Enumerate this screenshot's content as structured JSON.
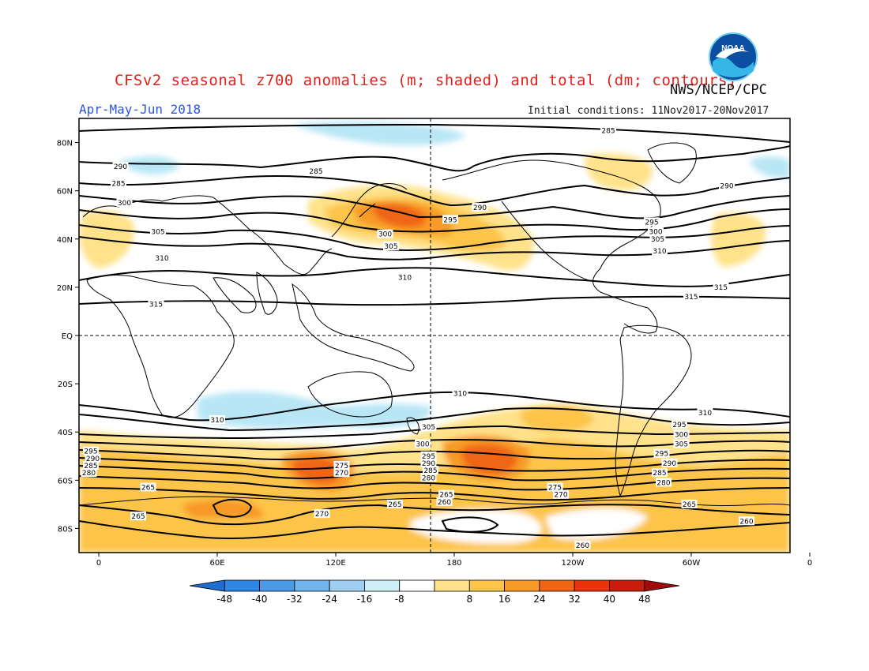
{
  "header": {
    "title": "CFSv2 seasonal z700 anomalies (m; shaded) and total (dm; contours)",
    "period": "Apr-May-Jun 2018",
    "organization": "NWS/NCEP/CPC",
    "initial_conditions": "Initial conditions: 11Nov2017-20Nov2017",
    "logo_text": "NOAA"
  },
  "map": {
    "projection": "cylindrical equidistant",
    "lon_range_east": [
      -10,
      350
    ],
    "lat_range": [
      -90,
      90
    ],
    "lat_tick_labels": [
      "80N",
      "60N",
      "40N",
      "20N",
      "EQ",
      "20S",
      "40S",
      "60S",
      "80S"
    ],
    "lon_tick_labels": [
      "0",
      "60E",
      "120E",
      "180",
      "120W",
      "60W",
      "0"
    ],
    "reference_lines": [
      "EQ",
      "180"
    ]
  },
  "contour_labels": [
    {
      "text": "285",
      "lon": 110,
      "lat": 68
    },
    {
      "text": "285",
      "lon": 258,
      "lat": 85
    },
    {
      "text": "290",
      "lon": 11,
      "lat": 70
    },
    {
      "text": "290",
      "lon": 193,
      "lat": 53
    },
    {
      "text": "290",
      "lon": 318,
      "lat": 62
    },
    {
      "text": "285",
      "lon": 10,
      "lat": 63
    },
    {
      "text": "300",
      "lon": 13,
      "lat": 55
    },
    {
      "text": "305",
      "lon": 30,
      "lat": 43
    },
    {
      "text": "310",
      "lon": 32,
      "lat": 32
    },
    {
      "text": "310",
      "lon": 155,
      "lat": 24
    },
    {
      "text": "315",
      "lon": 29,
      "lat": 13
    },
    {
      "text": "300",
      "lon": 145,
      "lat": 42
    },
    {
      "text": "305",
      "lon": 148,
      "lat": 37
    },
    {
      "text": "295",
      "lon": 178,
      "lat": 48
    },
    {
      "text": "295",
      "lon": 280,
      "lat": 47
    },
    {
      "text": "300",
      "lon": 282,
      "lat": 43
    },
    {
      "text": "305",
      "lon": 283,
      "lat": 40
    },
    {
      "text": "310",
      "lon": 284,
      "lat": 35
    },
    {
      "text": "315",
      "lon": 315,
      "lat": 20
    },
    {
      "text": "315",
      "lon": 300,
      "lat": 16
    },
    {
      "text": "310",
      "lon": 183,
      "lat": -24
    },
    {
      "text": "310",
      "lon": 60,
      "lat": -35
    },
    {
      "text": "310",
      "lon": 307,
      "lat": -32
    },
    {
      "text": "305",
      "lon": 167,
      "lat": -38
    },
    {
      "text": "300",
      "lon": 164,
      "lat": -45
    },
    {
      "text": "295",
      "lon": 167,
      "lat": -50
    },
    {
      "text": "290",
      "lon": 167,
      "lat": -53
    },
    {
      "text": "285",
      "lon": 168,
      "lat": -56
    },
    {
      "text": "280",
      "lon": 167,
      "lat": -59
    },
    {
      "text": "275",
      "lon": 123,
      "lat": -54
    },
    {
      "text": "270",
      "lon": 123,
      "lat": -57
    },
    {
      "text": "265",
      "lon": 25,
      "lat": -63
    },
    {
      "text": "265",
      "lon": 150,
      "lat": -70
    },
    {
      "text": "265",
      "lon": 20,
      "lat": -75
    },
    {
      "text": "270",
      "lon": 113,
      "lat": -74
    },
    {
      "text": "265",
      "lon": 176,
      "lat": -66
    },
    {
      "text": "260",
      "lon": 175,
      "lat": -69
    },
    {
      "text": "275",
      "lon": 231,
      "lat": -63
    },
    {
      "text": "270",
      "lon": 234,
      "lat": -66
    },
    {
      "text": "295",
      "lon": 294,
      "lat": -37
    },
    {
      "text": "300",
      "lon": 295,
      "lat": -41
    },
    {
      "text": "305",
      "lon": 295,
      "lat": -45
    },
    {
      "text": "295",
      "lon": 285,
      "lat": -49
    },
    {
      "text": "290",
      "lon": 289,
      "lat": -53
    },
    {
      "text": "285",
      "lon": 284,
      "lat": -57
    },
    {
      "text": "280",
      "lon": 286,
      "lat": -61
    },
    {
      "text": "265",
      "lon": 299,
      "lat": -70
    },
    {
      "text": "260",
      "lon": 328,
      "lat": -77
    },
    {
      "text": "260",
      "lon": 245,
      "lat": -87
    },
    {
      "text": "295",
      "lon": -4,
      "lat": -48
    },
    {
      "text": "290",
      "lon": -3,
      "lat": -51
    },
    {
      "text": "285",
      "lon": -4,
      "lat": -54
    },
    {
      "text": "280",
      "lon": -5,
      "lat": -57
    }
  ],
  "colorbar": {
    "tick_labels": [
      "-48",
      "-40",
      "-32",
      "-24",
      "-16",
      "-8",
      "8",
      "16",
      "24",
      "32",
      "40",
      "48"
    ],
    "colors": [
      "#1e6ed2",
      "#2f86e4",
      "#4a9ae6",
      "#72b4ee",
      "#9fd0f3",
      "#cdeff7",
      "#ffffff",
      "#ffe28a",
      "#fcc448",
      "#f79a26",
      "#f06515",
      "#e8330d",
      "#c81c0d",
      "#a00c0c"
    ]
  },
  "colors": {
    "land_outline": "#000000",
    "contour": "#000000",
    "positive_weak": "#ffe28a",
    "positive_mod": "#fcc448",
    "positive_strong": "#f79a26",
    "positive_max": "#f06515",
    "negative_weak": "#b8e6f5"
  }
}
